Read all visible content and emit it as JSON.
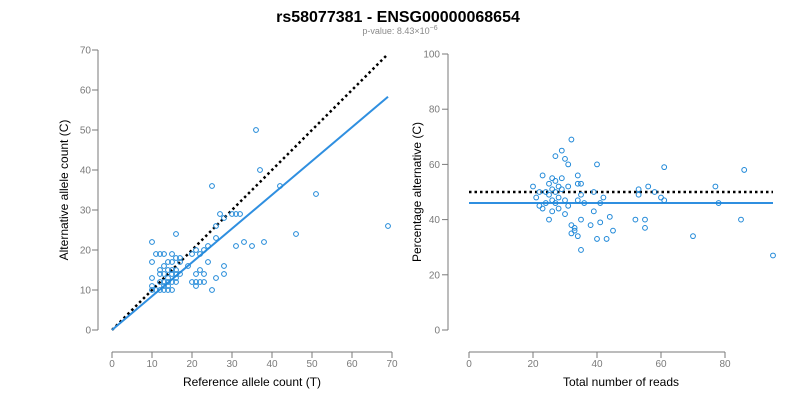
{
  "header": {
    "title": "rs58077381 - ENSG00000068654",
    "pvalue_prefix": "p-value: 8.43×10",
    "pvalue_exponent": "−6"
  },
  "colors": {
    "point": "#1f88d8",
    "fit_line": "#2f8fe0",
    "reference_line": "#000000",
    "axis": "#7a7a7a"
  },
  "chart_data": [
    {
      "type": "scatter",
      "xlabel": "Reference allele count (T)",
      "ylabel": "Alternative allele count (C)",
      "xlim": [
        0,
        70
      ],
      "ylim": [
        0,
        70
      ],
      "xticks": [
        0,
        10,
        20,
        30,
        40,
        50,
        60,
        70
      ],
      "yticks": [
        0,
        10,
        20,
        30,
        40,
        50,
        60,
        70
      ],
      "points": [
        [
          10,
          22
        ],
        [
          10,
          17
        ],
        [
          10,
          13
        ],
        [
          10,
          11
        ],
        [
          10,
          10
        ],
        [
          11,
          19
        ],
        [
          11,
          10
        ],
        [
          12,
          19
        ],
        [
          12,
          15
        ],
        [
          12,
          14
        ],
        [
          12,
          12
        ],
        [
          12,
          10
        ],
        [
          13,
          19
        ],
        [
          13,
          16
        ],
        [
          13,
          14
        ],
        [
          13,
          12
        ],
        [
          13,
          11
        ],
        [
          13,
          10
        ],
        [
          14,
          17
        ],
        [
          14,
          15
        ],
        [
          14,
          13
        ],
        [
          14,
          12
        ],
        [
          14,
          11
        ],
        [
          14,
          10
        ],
        [
          15,
          19
        ],
        [
          15,
          17
        ],
        [
          15,
          15
        ],
        [
          15,
          14
        ],
        [
          15,
          12
        ],
        [
          15,
          10
        ],
        [
          16,
          24
        ],
        [
          16,
          18
        ],
        [
          16,
          15
        ],
        [
          16,
          14
        ],
        [
          16,
          13
        ],
        [
          16,
          12
        ],
        [
          17,
          18
        ],
        [
          17,
          17
        ],
        [
          17,
          14
        ],
        [
          19,
          16
        ],
        [
          20,
          12
        ],
        [
          20,
          19
        ],
        [
          21,
          20
        ],
        [
          21,
          14
        ],
        [
          21,
          12
        ],
        [
          21,
          11
        ],
        [
          22,
          19
        ],
        [
          22,
          15
        ],
        [
          22,
          12
        ],
        [
          23,
          20
        ],
        [
          23,
          14
        ],
        [
          23,
          12
        ],
        [
          24,
          21
        ],
        [
          24,
          17
        ],
        [
          25,
          36
        ],
        [
          25,
          10
        ],
        [
          26,
          26
        ],
        [
          26,
          23
        ],
        [
          26,
          13
        ],
        [
          27,
          29
        ],
        [
          28,
          28
        ],
        [
          28,
          16
        ],
        [
          28,
          14
        ],
        [
          30,
          29
        ],
        [
          31,
          29
        ],
        [
          31,
          21
        ],
        [
          32,
          29
        ],
        [
          33,
          22
        ],
        [
          35,
          21
        ],
        [
          36,
          50
        ],
        [
          37,
          40
        ],
        [
          38,
          22
        ],
        [
          42,
          36
        ],
        [
          46,
          24
        ],
        [
          51,
          34
        ],
        [
          69,
          26
        ]
      ],
      "fit_line": {
        "intercept": 0,
        "slope": 0.845,
        "x_range": [
          0,
          69
        ]
      },
      "reference_line": {
        "intercept": 0,
        "slope": 1,
        "x_range": [
          0,
          69
        ]
      }
    },
    {
      "type": "scatter",
      "xlabel": "Total number of reads",
      "ylabel": "Percentage alternative (C)",
      "xlim": [
        0,
        95
      ],
      "ylim": [
        0,
        100
      ],
      "xticks": [
        0,
        20,
        40,
        60,
        80
      ],
      "yticks": [
        0,
        20,
        40,
        60,
        80,
        100
      ],
      "points": [
        [
          20,
          52
        ],
        [
          21,
          48
        ],
        [
          22,
          50
        ],
        [
          22,
          45
        ],
        [
          23,
          56
        ],
        [
          23,
          44
        ],
        [
          24,
          50
        ],
        [
          24,
          46
        ],
        [
          25,
          53
        ],
        [
          25,
          49
        ],
        [
          25,
          40
        ],
        [
          26,
          55
        ],
        [
          26,
          51
        ],
        [
          26,
          47
        ],
        [
          26,
          43
        ],
        [
          27,
          63
        ],
        [
          27,
          54
        ],
        [
          27,
          50
        ],
        [
          27,
          46
        ],
        [
          28,
          52
        ],
        [
          28,
          48
        ],
        [
          28,
          44
        ],
        [
          29,
          65
        ],
        [
          29,
          55
        ],
        [
          29,
          51
        ],
        [
          30,
          62
        ],
        [
          30,
          47
        ],
        [
          30,
          42
        ],
        [
          31,
          60
        ],
        [
          31,
          52
        ],
        [
          31,
          45
        ],
        [
          32,
          69
        ],
        [
          32,
          38
        ],
        [
          32,
          35
        ],
        [
          33,
          37
        ],
        [
          33,
          36
        ],
        [
          34,
          56
        ],
        [
          34,
          53
        ],
        [
          34,
          47
        ],
        [
          34,
          34
        ],
        [
          35,
          53
        ],
        [
          35,
          49
        ],
        [
          35,
          40
        ],
        [
          35,
          29
        ],
        [
          36,
          46
        ],
        [
          38,
          38
        ],
        [
          39,
          50
        ],
        [
          39,
          43
        ],
        [
          40,
          60
        ],
        [
          40,
          33
        ],
        [
          41,
          46
        ],
        [
          41,
          39
        ],
        [
          42,
          48
        ],
        [
          43,
          33
        ],
        [
          44,
          41
        ],
        [
          45,
          36
        ],
        [
          52,
          40
        ],
        [
          53,
          51
        ],
        [
          53,
          49
        ],
        [
          55,
          40
        ],
        [
          55,
          37
        ],
        [
          56,
          52
        ],
        [
          58,
          50
        ],
        [
          60,
          48
        ],
        [
          61,
          59
        ],
        [
          61,
          47
        ],
        [
          70,
          34
        ],
        [
          77,
          52
        ],
        [
          78,
          46
        ],
        [
          85,
          40
        ],
        [
          86,
          58
        ],
        [
          95,
          27
        ]
      ],
      "fit_line": {
        "intercept": 46,
        "slope": 0,
        "x_range": [
          0,
          95
        ]
      },
      "reference_line": {
        "intercept": 50,
        "slope": 0,
        "x_range": [
          0,
          95
        ]
      }
    }
  ]
}
